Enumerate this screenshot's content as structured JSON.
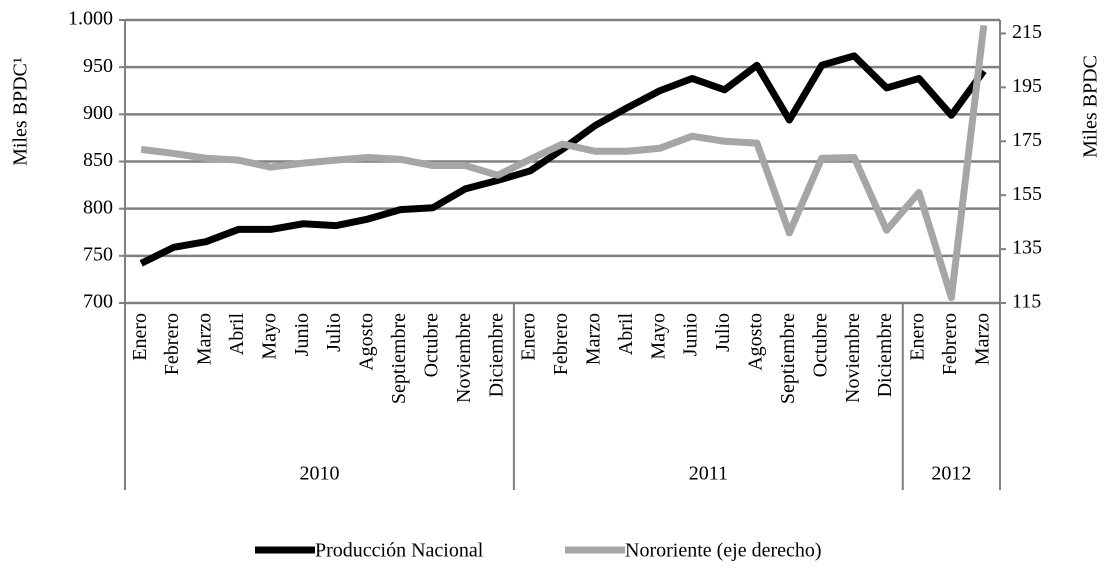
{
  "chart_data": {
    "type": "line",
    "ylabel": "Miles BPDC¹",
    "y2label": "Miles BPDC",
    "categories": [
      "Enero",
      "Febrero",
      "Marzo",
      "Abril",
      "Mayo",
      "Junio",
      "Julio",
      "Agosto",
      "Septiembre",
      "Octubre",
      "Noviembre",
      "Diciembre",
      "Enero",
      "Febrero",
      "Marzo",
      "Abril",
      "Mayo",
      "Junio",
      "Julio",
      "Agosto",
      "Septiembre",
      "Octubre",
      "Noviembre",
      "Diciembre",
      "Enero",
      "Febrero",
      "Marzo"
    ],
    "groups": [
      {
        "name": "2010",
        "span": 12
      },
      {
        "name": "2011",
        "span": 12
      },
      {
        "name": "2012",
        "span": 3
      }
    ],
    "series": [
      {
        "name": "Producción Nacional",
        "color": "#000000",
        "axis": "y",
        "values": [
          742,
          759,
          765,
          778,
          778,
          784,
          782,
          789,
          799,
          801,
          821,
          830,
          840,
          863,
          888,
          907,
          925,
          938,
          926,
          952,
          894,
          952,
          962,
          928,
          938,
          899,
          946
        ]
      },
      {
        "name": "Nororiente (eje derecho)",
        "color": "#a6a6a6",
        "axis": "y2",
        "values": [
          172,
          170.5,
          168.7,
          168,
          165.4,
          166.9,
          168,
          169,
          168.3,
          166,
          166,
          162.4,
          168.3,
          174,
          171.3,
          171.3,
          172.4,
          176.9,
          175,
          174.3,
          141,
          168.7,
          169,
          142,
          156,
          117,
          218
        ]
      }
    ],
    "ylim": [
      700,
      1000
    ],
    "yticks": [
      700,
      750,
      800,
      850,
      900,
      950,
      {
        "value": 1000,
        "label": "1.000"
      }
    ],
    "y2lim": [
      115,
      220
    ],
    "y2ticks": [
      115,
      135,
      155,
      175,
      195,
      215
    ],
    "grid": true,
    "legend": "bottom"
  }
}
